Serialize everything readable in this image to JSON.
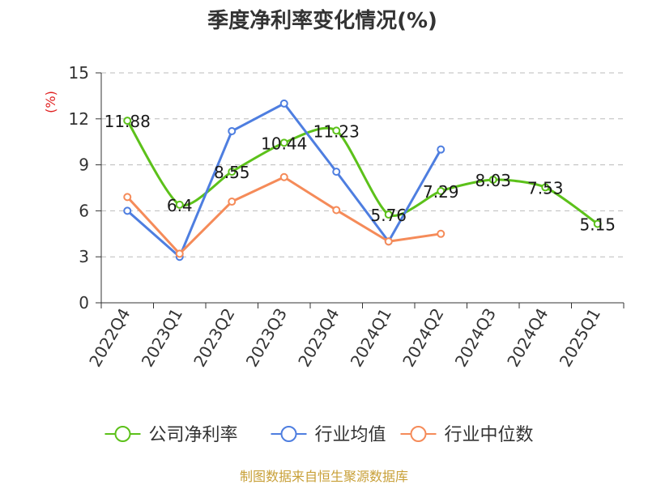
{
  "chart_data": {
    "type": "line",
    "title": "季度净利率变化情况(%)",
    "ylabel": "(%)",
    "categories": [
      "2022Q4",
      "2023Q1",
      "2023Q2",
      "2023Q3",
      "2023Q4",
      "2024Q1",
      "2024Q2",
      "2024Q3",
      "2024Q4",
      "2025Q1"
    ],
    "ylim": [
      0,
      15
    ],
    "yticks": [
      0,
      3,
      6,
      9,
      12,
      15
    ],
    "grid": true,
    "legend_position": "bottom",
    "series": [
      {
        "name": "公司净利率",
        "color": "#5cc11a",
        "values": [
          11.88,
          6.4,
          8.55,
          10.44,
          11.23,
          5.76,
          7.29,
          8.03,
          7.53,
          5.15
        ],
        "labels": [
          "11.88",
          "6.4",
          "8.55",
          "10.44",
          "11.23",
          "5.76",
          "7.29",
          "8.03",
          "7.53",
          "5.15"
        ]
      },
      {
        "name": "行业均值",
        "color": "#4e7ee0",
        "values": [
          6.0,
          3.0,
          11.2,
          13.0,
          8.55,
          4.0,
          10.0,
          null,
          null,
          null
        ]
      },
      {
        "name": "行业中位数",
        "color": "#f58b59",
        "values": [
          6.9,
          3.2,
          6.6,
          8.2,
          6.05,
          4.0,
          4.5,
          null,
          null,
          null
        ]
      }
    ]
  },
  "footer": {
    "source": "制图数据来自恒生聚源数据库"
  },
  "colors": {
    "ylabel": "#e02020",
    "footer": "#c8a038",
    "axis": "#333333",
    "grid": "#bbbbbb"
  }
}
